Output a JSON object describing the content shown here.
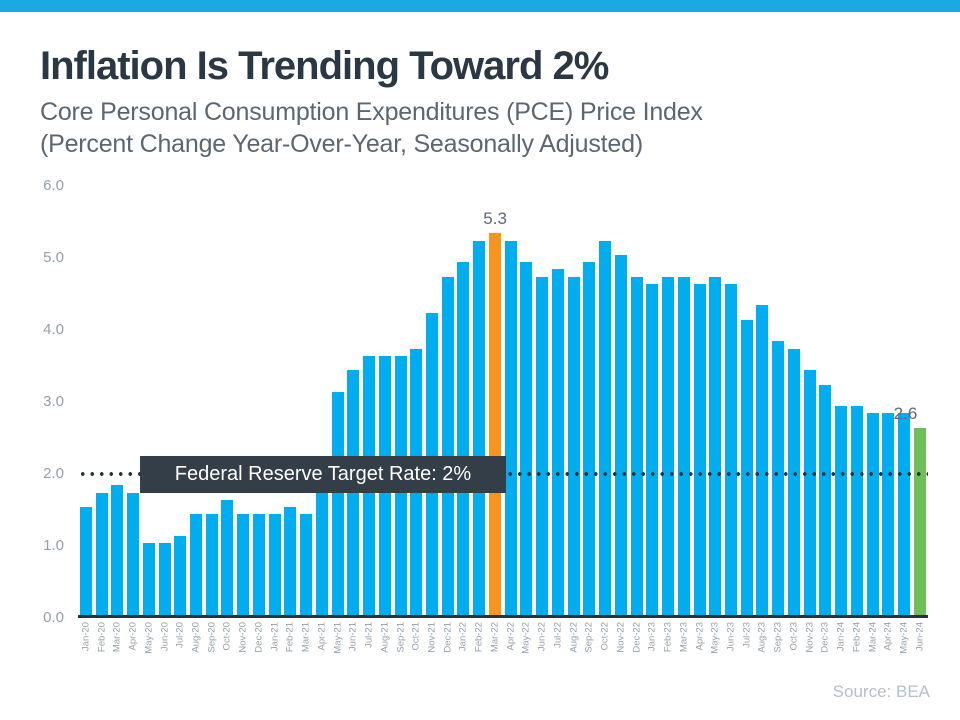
{
  "header": {
    "title": "Inflation Is Trending Toward 2%",
    "subtitle_line1": "Core Personal Consumption Expenditures (PCE) Price Index",
    "subtitle_line2": "(Percent Change Year-Over-Year, Seasonally Adjusted)"
  },
  "chart_data": {
    "type": "bar",
    "title": "Core PCE Price Index, Percent Change Year-Over-Year",
    "categories": [
      "Jan-20",
      "Feb-20",
      "Mar-20",
      "Apr-20",
      "May-20",
      "Jun-20",
      "Jul-20",
      "Aug-20",
      "Sep-20",
      "Oct-20",
      "Nov-20",
      "Dec-20",
      "Jan-21",
      "Feb-21",
      "Mar-21",
      "Apr-21",
      "May-21",
      "Jun-21",
      "Jul-21",
      "Aug-21",
      "Sep-21",
      "Oct-21",
      "Nov-21",
      "Dec-21",
      "Jan-22",
      "Feb-22",
      "Mar-22",
      "Apr-22",
      "May-22",
      "Jun-22",
      "Jul-22",
      "Aug-22",
      "Sep-22",
      "Oct-22",
      "Nov-22",
      "Dec-22",
      "Jan-23",
      "Feb-23",
      "Mar-23",
      "Apr-23",
      "May-23",
      "Jun-23",
      "Jul-23",
      "Aug-23",
      "Sep-23",
      "Oct-23",
      "Nov-23",
      "Dec-23",
      "Jan-24",
      "Feb-24",
      "Mar-24",
      "Apr-24",
      "May-24",
      "Jun-24"
    ],
    "values": [
      1.5,
      1.7,
      1.8,
      1.7,
      1.0,
      1.0,
      1.1,
      1.4,
      1.4,
      1.6,
      1.4,
      1.4,
      1.4,
      1.5,
      1.4,
      2.0,
      3.1,
      3.4,
      3.6,
      3.6,
      3.6,
      3.7,
      4.2,
      4.7,
      4.9,
      5.2,
      5.3,
      5.2,
      4.9,
      4.7,
      4.8,
      4.7,
      4.9,
      5.2,
      5.0,
      4.7,
      4.6,
      4.7,
      4.7,
      4.6,
      4.7,
      4.6,
      4.1,
      4.3,
      3.8,
      3.7,
      3.4,
      3.2,
      2.9,
      2.9,
      2.8,
      2.8,
      2.8,
      2.6
    ],
    "ylim": [
      0,
      6
    ],
    "ytick_labels": [
      "6.0",
      "5.0",
      "4.0",
      "3.0",
      "2.0",
      "1.0",
      "0.0"
    ],
    "grid": false,
    "bar_color_default": "#00AEEF",
    "highlights": [
      {
        "category": "Mar-22",
        "index": 26,
        "color": "#F7941E",
        "data_label": "5.3"
      },
      {
        "category": "Jun-24",
        "index": 53,
        "color": "#6FBE59",
        "data_label": "2.6"
      }
    ],
    "target_line": {
      "value": 2.0,
      "label": "Federal Reserve Target Rate: 2%",
      "style": "dotted",
      "color": "#26323C"
    }
  },
  "footer": {
    "source_label": "Source: BEA"
  },
  "colors": {
    "banner": "#1BA9E3",
    "title_text": "#2B3843",
    "subtitle_text": "#5A6771",
    "axis_text": "#93A0AA",
    "annotation_text": "#5C6B77",
    "axis_line": "#26323C",
    "target_box_bg": "#333E48",
    "target_box_text": "#FFFFFF",
    "source_text": "#B4BFC8"
  }
}
